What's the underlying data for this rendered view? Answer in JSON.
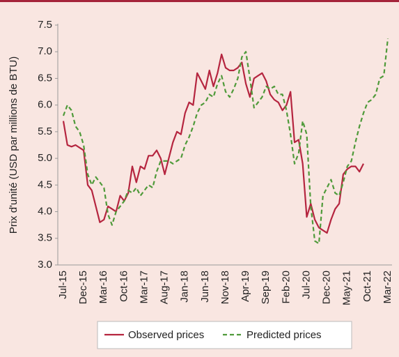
{
  "chart_data": {
    "type": "line",
    "ylabel": "Prix d'unité (USD par millions de BTU)",
    "categories": [
      "Jul-15",
      null,
      null,
      null,
      null,
      "Dec-15",
      null,
      null,
      null,
      null,
      "Mar-16",
      null,
      null,
      null,
      null,
      "Oct-16",
      null,
      null,
      null,
      null,
      "Mar-17",
      null,
      null,
      null,
      null,
      "Aug-17",
      null,
      null,
      null,
      null,
      "Jan-18",
      null,
      null,
      null,
      null,
      "Jun-18",
      null,
      null,
      null,
      null,
      "Nov-18",
      null,
      null,
      null,
      null,
      "Apr-19",
      null,
      null,
      null,
      null,
      "Sep-19",
      null,
      null,
      null,
      null,
      "Feb-20",
      null,
      null,
      null,
      null,
      "Jul-20",
      null,
      null,
      null,
      null,
      "Dec-20",
      null,
      null,
      null,
      null,
      "May-21",
      null,
      null,
      null,
      null,
      "Oct-21",
      null,
      null,
      null,
      null,
      "Mar-22"
    ],
    "series": [
      {
        "name": "Observed prices",
        "color": "#b5253f",
        "dashed": false,
        "values": [
          5.7,
          5.25,
          5.22,
          5.25,
          5.2,
          5.15,
          4.5,
          4.4,
          4.1,
          3.8,
          3.85,
          4.1,
          4.05,
          4.0,
          4.3,
          4.2,
          4.35,
          4.85,
          4.55,
          4.85,
          4.8,
          5.05,
          5.05,
          5.15,
          5.0,
          4.7,
          5.0,
          5.3,
          5.5,
          5.45,
          5.85,
          6.05,
          6.0,
          6.6,
          6.45,
          6.3,
          6.65,
          6.35,
          6.6,
          6.95,
          6.7,
          6.65,
          6.65,
          6.7,
          6.8,
          6.4,
          6.15,
          6.5,
          6.55,
          6.6,
          6.45,
          6.2,
          6.1,
          6.05,
          5.9,
          6.0,
          6.25,
          5.3,
          5.35,
          4.9,
          3.9,
          4.15,
          3.85,
          3.7,
          3.65,
          3.6,
          3.85,
          4.05,
          4.15,
          4.7,
          4.8,
          4.85,
          4.85,
          4.75,
          4.9,
          null,
          null,
          null,
          null,
          null,
          null
        ]
      },
      {
        "name": "Predicted prices",
        "color": "#4f9a3a",
        "dashed": true,
        "values": [
          5.8,
          6.0,
          5.9,
          5.6,
          5.5,
          5.25,
          4.7,
          4.5,
          4.65,
          4.55,
          4.45,
          3.95,
          3.75,
          4.0,
          4.1,
          4.2,
          4.4,
          4.35,
          4.45,
          4.3,
          4.4,
          4.5,
          4.45,
          4.75,
          4.95,
          4.95,
          4.95,
          4.9,
          4.95,
          5.0,
          5.25,
          5.4,
          5.6,
          5.85,
          6.0,
          6.05,
          6.2,
          6.15,
          6.4,
          6.55,
          6.25,
          6.15,
          6.3,
          6.5,
          6.9,
          7.0,
          6.5,
          5.95,
          6.05,
          6.15,
          6.35,
          6.3,
          6.35,
          6.2,
          6.2,
          5.9,
          5.45,
          4.9,
          5.1,
          5.7,
          5.45,
          4.1,
          3.45,
          3.4,
          4.3,
          4.45,
          4.6,
          4.35,
          4.3,
          4.55,
          4.85,
          4.95,
          5.3,
          5.6,
          5.85,
          6.05,
          6.1,
          6.2,
          6.5,
          6.55,
          7.25
        ]
      }
    ],
    "ylim": [
      3.0,
      7.5
    ],
    "yticks": [
      {
        "value": 3,
        "label": "3.0"
      },
      3.5,
      {
        "value": 4,
        "label": "4.0"
      },
      4.5,
      {
        "value": 5,
        "label": "5.0"
      },
      5.5,
      {
        "value": 6,
        "label": "6.0"
      },
      6.5,
      {
        "value": 7,
        "label": "7.0"
      },
      7.5
    ],
    "grid": false,
    "legend": "bottom"
  }
}
